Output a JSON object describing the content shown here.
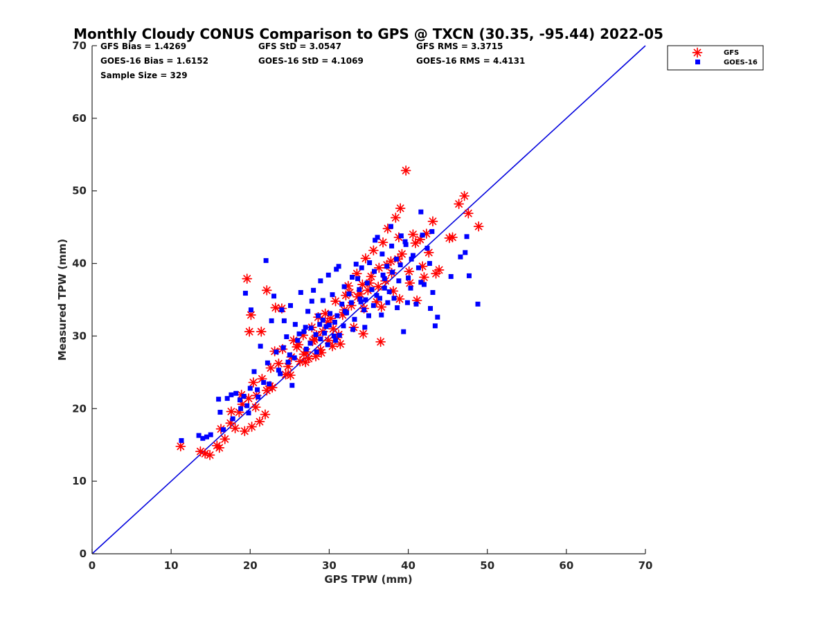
{
  "chart_data": {
    "type": "scatter",
    "title": "Monthly Cloudy CONUS Comparison to GPS @ TXCN (30.35, -95.44) 2022-05",
    "xlabel": "GPS TPW (mm)",
    "ylabel": "Measured TPW (mm)",
    "xlim": [
      0,
      70
    ],
    "ylim": [
      0,
      70
    ],
    "xticks": [
      "0",
      "10",
      "20",
      "30",
      "40",
      "50",
      "60",
      "70"
    ],
    "yticks": [
      "0",
      "10",
      "20",
      "30",
      "40",
      "50",
      "60",
      "70"
    ],
    "grid": false,
    "legend_position": "top-right",
    "stats": [
      [
        "GFS Bias = 1.4269",
        "GFS StD = 3.0547",
        "GFS RMS = 3.3715"
      ],
      [
        "GOES-16 Bias = 1.6152",
        "GOES-16 StD = 4.1069",
        "GOES-16 RMS = 4.4131"
      ],
      [
        "Sample Size = 329"
      ]
    ],
    "reference_line": {
      "x": [
        0,
        70
      ],
      "y": [
        0,
        70
      ],
      "color": "#0000dd"
    },
    "series": [
      {
        "name": "GFS",
        "marker": "asterisk",
        "color": "#ff0000",
        "points": [
          [
            11.2,
            14.8
          ],
          [
            13.7,
            14.1
          ],
          [
            14.3,
            13.8
          ],
          [
            14.9,
            13.6
          ],
          [
            15.8,
            14.9
          ],
          [
            16.1,
            14.6
          ],
          [
            16.3,
            17.2
          ],
          [
            16.8,
            15.8
          ],
          [
            17.5,
            18.0
          ],
          [
            18.1,
            17.3
          ],
          [
            18.6,
            19.5
          ],
          [
            19.0,
            20.6
          ],
          [
            19.3,
            16.9
          ],
          [
            19.8,
            21.4
          ],
          [
            20.2,
            17.5
          ],
          [
            20.4,
            23.6
          ],
          [
            20.8,
            21.8
          ],
          [
            21.2,
            18.2
          ],
          [
            21.5,
            24.1
          ],
          [
            21.9,
            19.2
          ],
          [
            22.1,
            22.5
          ],
          [
            22.5,
            23.1
          ],
          [
            22.6,
            25.6
          ],
          [
            23.1,
            27.9
          ],
          [
            23.6,
            26.2
          ],
          [
            24.1,
            28.2
          ],
          [
            24.5,
            24.7
          ],
          [
            24.8,
            25.8
          ],
          [
            25.2,
            27.1
          ],
          [
            25.5,
            29.4
          ],
          [
            25.9,
            28.5
          ],
          [
            26.3,
            26.5
          ],
          [
            26.7,
            30.1
          ],
          [
            27.1,
            27.8
          ],
          [
            27.4,
            26.9
          ],
          [
            27.8,
            31.2
          ],
          [
            28.1,
            29.5
          ],
          [
            28.3,
            27.2
          ],
          [
            28.6,
            32.6
          ],
          [
            28.9,
            28.1
          ],
          [
            29.2,
            30.6
          ],
          [
            29.5,
            33.1
          ],
          [
            29.9,
            29.4
          ],
          [
            30.2,
            32.4
          ],
          [
            30.5,
            31.0
          ],
          [
            30.8,
            34.8
          ],
          [
            31.2,
            30.2
          ],
          [
            31.4,
            28.9
          ],
          [
            31.7,
            32.9
          ],
          [
            32.1,
            35.6
          ],
          [
            32.4,
            36.9
          ],
          [
            32.8,
            34.2
          ],
          [
            33.1,
            31.2
          ],
          [
            33.5,
            38.6
          ],
          [
            33.9,
            35.8
          ],
          [
            34.2,
            37.1
          ],
          [
            34.6,
            40.7
          ],
          [
            34.9,
            36.3
          ],
          [
            35.3,
            38.2
          ],
          [
            35.6,
            41.8
          ],
          [
            36.0,
            34.7
          ],
          [
            36.3,
            39.4
          ],
          [
            36.5,
            29.2
          ],
          [
            36.8,
            42.9
          ],
          [
            37.1,
            37.6
          ],
          [
            37.4,
            44.8
          ],
          [
            37.8,
            40.3
          ],
          [
            38.1,
            36.2
          ],
          [
            38.4,
            46.3
          ],
          [
            38.8,
            43.6
          ],
          [
            39.0,
            47.6
          ],
          [
            39.2,
            41.3
          ],
          [
            39.7,
            52.8
          ],
          [
            40.1,
            38.9
          ],
          [
            40.6,
            44.0
          ],
          [
            41.1,
            34.9
          ],
          [
            41.5,
            43.3
          ],
          [
            42.0,
            38.1
          ],
          [
            42.6,
            41.5
          ],
          [
            43.1,
            45.8
          ],
          [
            43.5,
            38.6
          ],
          [
            45.2,
            43.5
          ],
          [
            45.6,
            43.6
          ],
          [
            46.4,
            48.2
          ],
          [
            47.1,
            49.3
          ],
          [
            47.6,
            46.9
          ],
          [
            48.9,
            45.1
          ],
          [
            19.6,
            37.9
          ],
          [
            22.1,
            36.3
          ],
          [
            19.9,
            30.6
          ],
          [
            20.1,
            32.9
          ],
          [
            23.2,
            33.9
          ],
          [
            21.4,
            30.6
          ],
          [
            24.0,
            33.8
          ],
          [
            34.3,
            30.3
          ],
          [
            36.6,
            34.0
          ],
          [
            37.9,
            38.7
          ],
          [
            40.2,
            37.3
          ],
          [
            26.8,
            27.5
          ],
          [
            29.8,
            31.9
          ],
          [
            31.9,
            33.6
          ],
          [
            33.6,
            35.4
          ],
          [
            35.1,
            37.3
          ],
          [
            37.3,
            39.8
          ],
          [
            38.7,
            40.6
          ],
          [
            40.9,
            42.8
          ],
          [
            42.3,
            44.1
          ],
          [
            28.4,
            30.1
          ],
          [
            30.4,
            28.6
          ],
          [
            32.6,
            36.0
          ],
          [
            34.4,
            33.8
          ],
          [
            36.2,
            36.8
          ],
          [
            38.9,
            35.1
          ],
          [
            41.8,
            39.6
          ],
          [
            43.9,
            39.1
          ],
          [
            25.1,
            24.6
          ],
          [
            27.0,
            26.4
          ],
          [
            29.0,
            27.7
          ],
          [
            31.0,
            29.8
          ],
          [
            17.6,
            19.6
          ],
          [
            18.9,
            21.9
          ],
          [
            20.7,
            20.2
          ],
          [
            22.8,
            22.9
          ],
          [
            26.1,
            28.8
          ],
          [
            27.9,
            29.3
          ]
        ]
      },
      {
        "name": "GOES-16",
        "marker": "square",
        "color": "#0000ff",
        "points": [
          [
            11.3,
            15.6
          ],
          [
            13.5,
            16.3
          ],
          [
            14.0,
            15.9
          ],
          [
            14.5,
            16.1
          ],
          [
            15.0,
            16.4
          ],
          [
            16.0,
            21.3
          ],
          [
            16.2,
            19.5
          ],
          [
            16.6,
            17.1
          ],
          [
            17.1,
            21.4
          ],
          [
            17.6,
            21.9
          ],
          [
            18.2,
            22.1
          ],
          [
            18.7,
            21.2
          ],
          [
            19.2,
            21.7
          ],
          [
            19.6,
            20.4
          ],
          [
            20.0,
            22.8
          ],
          [
            20.5,
            25.1
          ],
          [
            20.9,
            22.6
          ],
          [
            21.3,
            28.6
          ],
          [
            21.7,
            23.6
          ],
          [
            22.0,
            40.4
          ],
          [
            22.2,
            26.3
          ],
          [
            22.7,
            32.1
          ],
          [
            23.0,
            35.5
          ],
          [
            23.3,
            27.8
          ],
          [
            23.6,
            25.3
          ],
          [
            24.0,
            33.6
          ],
          [
            24.2,
            28.4
          ],
          [
            24.6,
            29.9
          ],
          [
            25.0,
            27.4
          ],
          [
            25.3,
            23.2
          ],
          [
            25.7,
            31.6
          ],
          [
            26.0,
            29.4
          ],
          [
            26.4,
            36.0
          ],
          [
            26.8,
            30.6
          ],
          [
            27.1,
            28.2
          ],
          [
            27.3,
            33.4
          ],
          [
            27.7,
            31.1
          ],
          [
            28.0,
            36.3
          ],
          [
            28.3,
            30.2
          ],
          [
            28.6,
            32.8
          ],
          [
            28.9,
            29.6
          ],
          [
            29.2,
            34.9
          ],
          [
            29.6,
            31.3
          ],
          [
            29.9,
            38.4
          ],
          [
            30.1,
            33.1
          ],
          [
            30.4,
            35.7
          ],
          [
            30.7,
            31.9
          ],
          [
            30.9,
            39.2
          ],
          [
            31.3,
            30.1
          ],
          [
            31.6,
            34.4
          ],
          [
            31.9,
            36.8
          ],
          [
            32.2,
            33.2
          ],
          [
            32.5,
            35.8
          ],
          [
            32.9,
            38.1
          ],
          [
            33.2,
            32.3
          ],
          [
            33.6,
            37.9
          ],
          [
            33.9,
            35.1
          ],
          [
            34.1,
            39.4
          ],
          [
            34.4,
            33.6
          ],
          [
            34.8,
            37.3
          ],
          [
            35.1,
            40.1
          ],
          [
            35.4,
            36.4
          ],
          [
            35.7,
            38.9
          ],
          [
            36.1,
            43.6
          ],
          [
            36.4,
            35.2
          ],
          [
            36.7,
            41.3
          ],
          [
            37.0,
            37.9
          ],
          [
            37.3,
            39.6
          ],
          [
            37.6,
            36.1
          ],
          [
            37.9,
            42.4
          ],
          [
            38.2,
            35.2
          ],
          [
            38.5,
            40.6
          ],
          [
            38.8,
            37.6
          ],
          [
            39.1,
            43.8
          ],
          [
            39.4,
            30.6
          ],
          [
            39.7,
            42.6
          ],
          [
            40.0,
            38.0
          ],
          [
            40.3,
            36.6
          ],
          [
            40.6,
            41.1
          ],
          [
            41.0,
            34.4
          ],
          [
            41.3,
            39.4
          ],
          [
            41.6,
            47.1
          ],
          [
            42.0,
            37.1
          ],
          [
            42.4,
            42.1
          ],
          [
            42.7,
            40.0
          ],
          [
            43.1,
            36.0
          ],
          [
            43.4,
            31.4
          ],
          [
            43.7,
            32.6
          ],
          [
            45.4,
            38.2
          ],
          [
            46.6,
            40.9
          ],
          [
            47.2,
            41.5
          ],
          [
            47.4,
            43.7
          ],
          [
            47.7,
            38.3
          ],
          [
            48.8,
            34.4
          ],
          [
            27.0,
            31.2
          ],
          [
            28.4,
            27.8
          ],
          [
            29.4,
            30.4
          ],
          [
            30.6,
            30.0
          ],
          [
            31.8,
            31.4
          ],
          [
            32.8,
            34.6
          ],
          [
            33.8,
            36.4
          ],
          [
            34.6,
            35.0
          ],
          [
            35.6,
            34.2
          ],
          [
            36.8,
            38.4
          ],
          [
            37.4,
            34.6
          ],
          [
            38.0,
            38.8
          ],
          [
            39.0,
            39.8
          ],
          [
            40.4,
            40.6
          ],
          [
            41.6,
            37.4
          ],
          [
            29.2,
            32.2
          ],
          [
            30.0,
            31.5
          ],
          [
            31.0,
            32.8
          ],
          [
            32.0,
            33.4
          ],
          [
            33.0,
            30.9
          ],
          [
            34.0,
            34.7
          ],
          [
            35.0,
            32.8
          ],
          [
            36.0,
            35.6
          ],
          [
            37.0,
            36.6
          ],
          [
            26.2,
            30.3
          ],
          [
            27.6,
            29.0
          ],
          [
            28.8,
            31.6
          ],
          [
            29.8,
            28.8
          ],
          [
            30.8,
            29.4
          ],
          [
            24.8,
            26.4
          ],
          [
            25.6,
            27.0
          ],
          [
            17.8,
            18.6
          ],
          [
            18.8,
            20.0
          ],
          [
            19.8,
            19.4
          ],
          [
            21.0,
            21.6
          ],
          [
            22.4,
            23.4
          ],
          [
            23.8,
            24.8
          ],
          [
            19.4,
            35.9
          ],
          [
            20.1,
            33.6
          ],
          [
            24.3,
            32.1
          ],
          [
            25.1,
            34.2
          ],
          [
            27.8,
            34.8
          ],
          [
            28.9,
            37.6
          ],
          [
            31.2,
            39.6
          ],
          [
            33.4,
            39.9
          ],
          [
            35.8,
            43.2
          ],
          [
            37.8,
            45.1
          ],
          [
            39.6,
            43.0
          ],
          [
            41.8,
            43.9
          ],
          [
            43.0,
            44.4
          ],
          [
            34.5,
            31.2
          ],
          [
            36.6,
            32.9
          ],
          [
            38.6,
            33.9
          ],
          [
            39.9,
            34.6
          ],
          [
            42.8,
            33.8
          ]
        ]
      }
    ]
  }
}
